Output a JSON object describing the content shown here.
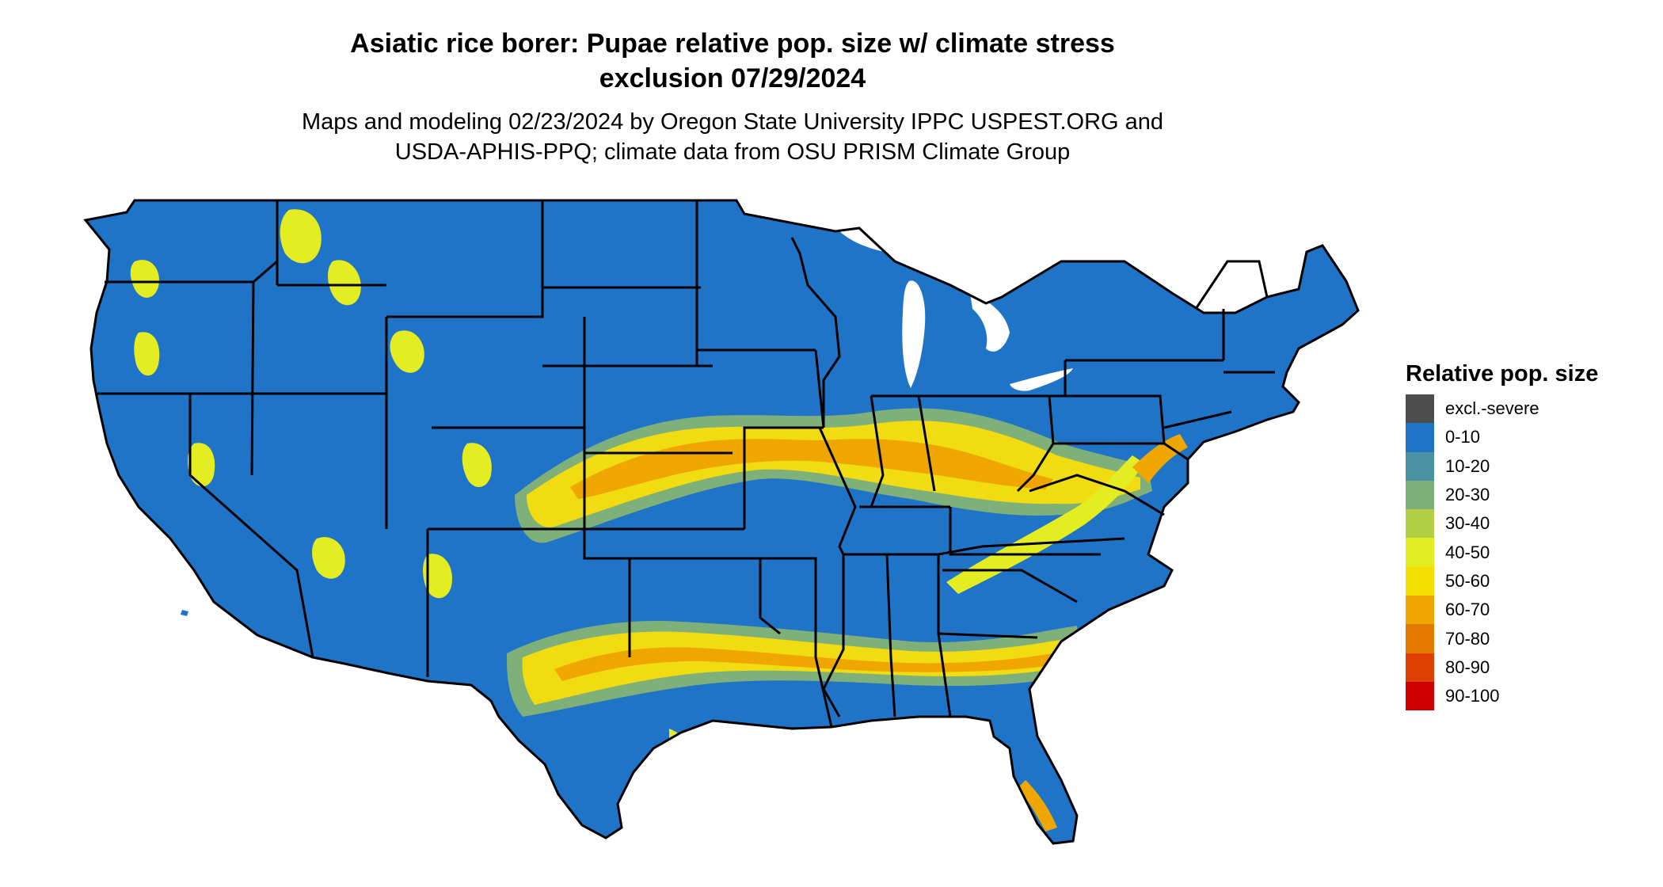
{
  "title": {
    "line1": "Asiatic rice borer: Pupae relative pop. size w/ climate stress",
    "line2": "exclusion 07/29/2024"
  },
  "subtitle": {
    "line1": "Maps and modeling 02/23/2024 by Oregon State University IPPC USPEST.ORG and",
    "line2": "USDA-APHIS-PPQ; climate data from OSU PRISM Climate Group"
  },
  "legend": {
    "title": "Relative pop. size",
    "items": [
      {
        "label": "excl.-severe",
        "color": "#4d4d4d"
      },
      {
        "label": "0-10",
        "color": "#1f74c8"
      },
      {
        "label": "10-20",
        "color": "#4a93a4"
      },
      {
        "label": "20-30",
        "color": "#7fb07a"
      },
      {
        "label": "30-40",
        "color": "#b2cf45"
      },
      {
        "label": "40-50",
        "color": "#e4ec22"
      },
      {
        "label": "50-60",
        "color": "#f5df00"
      },
      {
        "label": "60-70",
        "color": "#efa700"
      },
      {
        "label": "70-80",
        "color": "#e57a00"
      },
      {
        "label": "80-90",
        "color": "#df3f00"
      },
      {
        "label": "90-100",
        "color": "#d10000"
      }
    ]
  },
  "map": {
    "region": "Contiguous United States",
    "base_color": "#1f74c8",
    "state_border_color": "#000000"
  }
}
